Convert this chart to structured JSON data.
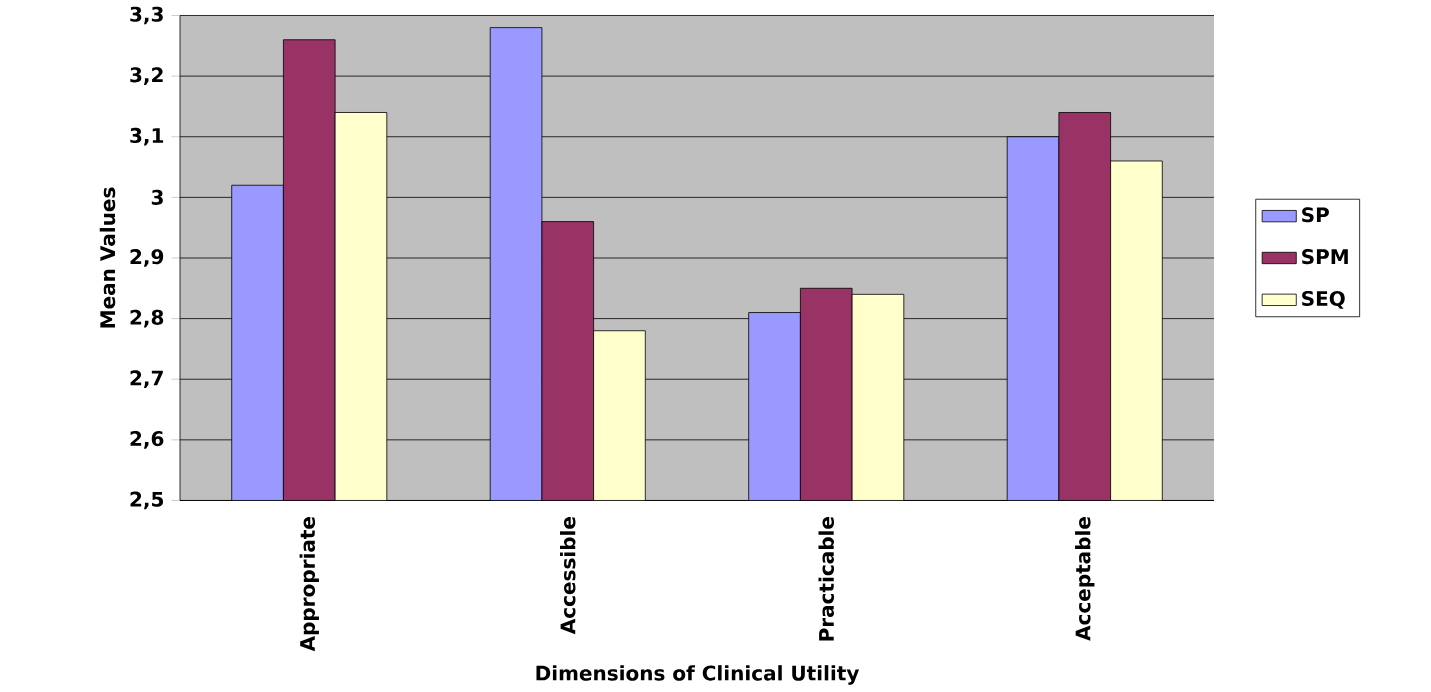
{
  "chart_data": {
    "type": "bar",
    "xlabel": "Dimensions of Clinical Utility",
    "ylabel": "Mean Values",
    "categories": [
      "Appropriate",
      "Accessible",
      "Practicable",
      "Acceptable"
    ],
    "series": [
      {
        "name": "SP",
        "color": "#9999ff",
        "values": [
          3.02,
          3.28,
          2.81,
          3.1
        ]
      },
      {
        "name": "SPM",
        "color": "#993366",
        "values": [
          3.26,
          2.96,
          2.85,
          3.14
        ]
      },
      {
        "name": "SEQ",
        "color": "#ffffcc",
        "values": [
          3.14,
          2.78,
          2.84,
          3.06
        ]
      }
    ],
    "ylim": [
      2.5,
      3.3
    ],
    "yticks": [
      {
        "value": 2.5,
        "label": "2,5"
      },
      {
        "value": 2.6,
        "label": "2,6"
      },
      {
        "value": 2.7,
        "label": "2,7"
      },
      {
        "value": 2.8,
        "label": "2,8"
      },
      {
        "value": 2.9,
        "label": "2,9"
      },
      {
        "value": 3,
        "label": "3"
      },
      {
        "value": 3.1,
        "label": "3,1"
      },
      {
        "value": 3.2,
        "label": "3,2"
      },
      {
        "value": 3.3,
        "label": "3,3"
      }
    ],
    "grid": "y",
    "legend": "right"
  }
}
